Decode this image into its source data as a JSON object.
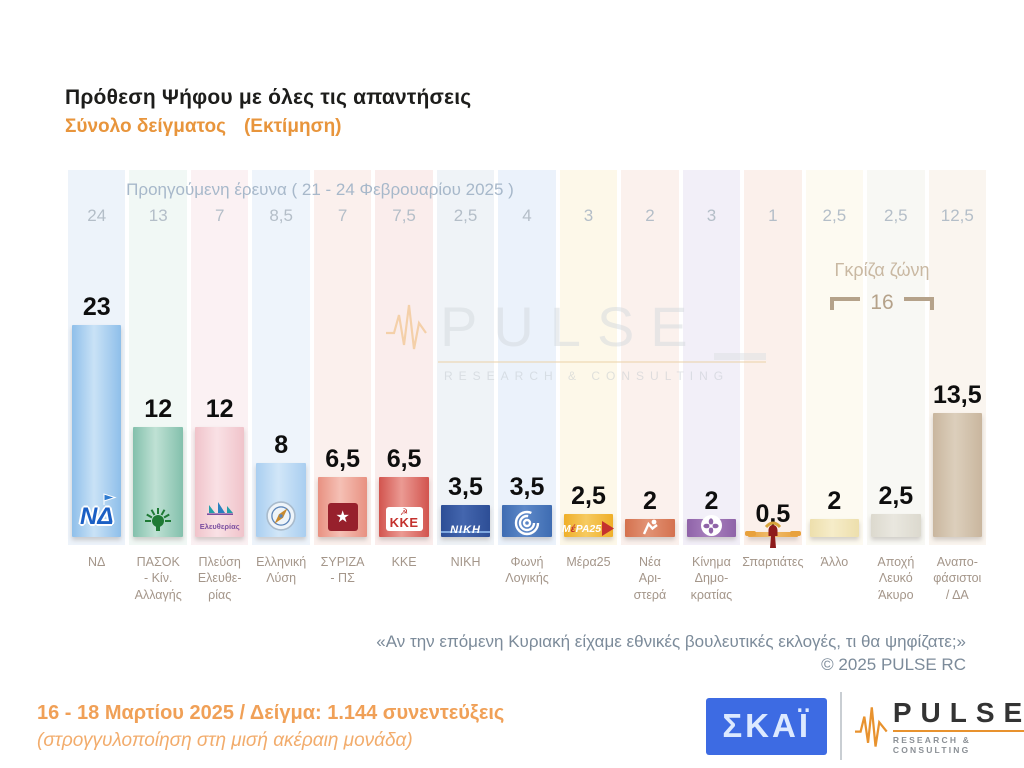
{
  "header": {
    "title": "Πρόθεση Ψήφου με όλες τις απαντήσεις",
    "subtitle": "Σύνολο δείγματος",
    "subtitle_note": "(Εκτίμηση)"
  },
  "chart_data": {
    "type": "bar",
    "title": "Πρόθεση Ψήφου με όλες τις απαντήσεις",
    "subtitle": "Σύνολο δείγματος (Εκτίμηση)",
    "previous_survey_label": "Προηγούμενη έρευνα ( 21 - 24 Φεβρουαρίου 2025 )",
    "gray_zone": {
      "label": "Γκρίζα ζώνη",
      "value": "16"
    },
    "ylim": [
      0,
      26
    ],
    "grid": false,
    "legend": "none",
    "categories": [
      "ΝΔ",
      "ΠΑΣΟΚ - Κίν. Αλλαγής",
      "Πλεύση Ελευθερίας",
      "Ελληνική Λύση",
      "ΣΥΡΙΖΑ - ΠΣ",
      "ΚΚΕ",
      "ΝΙΚΗ",
      "Φωνή Λογικής",
      "Μέρα25",
      "Νέα Αριστερά",
      "Κίνημα Δημοκρατίας",
      "Σπαρτιάτες",
      "Άλλο",
      "Αποχή Λευκό Άκυρο",
      "Αναποφάσιστοι / ΔΑ"
    ],
    "series": [
      {
        "name": "Εκτίμηση 16 - 18 Μαρτίου 2025",
        "values": [
          23,
          12,
          12,
          8,
          6.5,
          6.5,
          3.5,
          3.5,
          2.5,
          2,
          2,
          0.5,
          2,
          2.5,
          13.5
        ]
      },
      {
        "name": "Προηγούμενη έρευνα 21 - 24 Φεβρουαρίου 2025",
        "values": [
          24,
          13,
          7,
          8.5,
          7,
          7.5,
          2.5,
          4,
          3,
          2,
          3,
          1,
          2.5,
          2.5,
          12.5
        ]
      }
    ],
    "parties": [
      {
        "id": "nd",
        "label_lines": [
          "ΝΔ"
        ],
        "value": 23,
        "display": "23",
        "prev": "24",
        "bar": "#8fbfea",
        "bar_light": "#c9e2f6",
        "tint": "#edf3fa",
        "logo": "nd"
      },
      {
        "id": "pasok",
        "label_lines": [
          "ΠΑΣΟΚ",
          "- Κίν.",
          "Αλλαγής"
        ],
        "value": 12,
        "display": "12",
        "prev": "13",
        "bar": "#83c0ac",
        "bar_light": "#bfe1d4",
        "tint": "#f1f8f5",
        "logo": "pasok"
      },
      {
        "id": "plefsi-eleftherias",
        "label_lines": [
          "Πλεύση",
          "Ελευθε-",
          "ρίας"
        ],
        "value": 12,
        "display": "12",
        "prev": "7",
        "bar": "#f0c3ca",
        "bar_light": "#f9e1e5",
        "tint": "#fbf1f3",
        "logo": "plefsi"
      },
      {
        "id": "elliniki-lysi",
        "label_lines": [
          "Ελληνική",
          "Λύση"
        ],
        "value": 8,
        "display": "8",
        "prev": "8,5",
        "bar": "#a9cef0",
        "bar_light": "#d1e6f8",
        "tint": "#eef4fb",
        "logo": "compass"
      },
      {
        "id": "syriza-ps",
        "label_lines": [
          "ΣΥΡΙΖΑ",
          "- ΠΣ"
        ],
        "value": 6.5,
        "display": "6,5",
        "prev": "7",
        "bar": "#e89181",
        "bar_light": "#f5c0b5",
        "tint": "#fbf0ed",
        "logo": "syriza"
      },
      {
        "id": "kke",
        "label_lines": [
          "ΚΚΕ"
        ],
        "value": 6.5,
        "display": "6,5",
        "prev": "7,5",
        "bar": "#d2544e",
        "bar_light": "#eb9a93",
        "tint": "#faedec",
        "logo": "kke"
      },
      {
        "id": "niki",
        "label_lines": [
          "ΝΙΚΗ"
        ],
        "value": 3.5,
        "display": "3,5",
        "prev": "2,5",
        "bar": "#2d4e96",
        "bar_light": "#4466ae",
        "tint": "#eff3f7",
        "logo": "niki"
      },
      {
        "id": "foni-logikis",
        "label_lines": [
          "Φωνή",
          "Λογικής"
        ],
        "value": 3.5,
        "display": "3,5",
        "prev": "4",
        "bar": "#3e6cb2",
        "bar_light": "#5d88c8",
        "tint": "#ebf2fb",
        "logo": "foni"
      },
      {
        "id": "mera25",
        "label_lines": [
          "Μέρα25"
        ],
        "value": 2.5,
        "display": "2,5",
        "prev": "3",
        "bar": "#efaf28",
        "bar_light": "#f6ca60",
        "tint": "#fdf8e9",
        "logo": "mera25"
      },
      {
        "id": "nea-aristera",
        "label_lines": [
          "Νέα",
          "Αρι-",
          "στερά"
        ],
        "value": 2,
        "display": "2",
        "prev": "2",
        "bar": "#d4714e",
        "bar_light": "#e29375",
        "tint": "#fbf1ed",
        "logo": "nea-aristera"
      },
      {
        "id": "kinima-dimokratias",
        "label_lines": [
          "Κίνημα",
          "Δημο-",
          "κρατίας"
        ],
        "value": 2,
        "display": "2",
        "prev": "3",
        "bar": "#8f63a8",
        "bar_light": "#a981bf",
        "tint": "#f2eff8",
        "logo": "kinima"
      },
      {
        "id": "spartiates",
        "label_lines": [
          "Σπαρτιάτες"
        ],
        "value": 0.5,
        "display": "0,5",
        "prev": "1",
        "bar": "#e8a13c",
        "bar_light": "#f0bd6e",
        "tint": "#fbf0eb",
        "logo": "spartiates"
      },
      {
        "id": "allo",
        "label_lines": [
          "Άλλο"
        ],
        "value": 2,
        "display": "2",
        "prev": "2,5",
        "bar": "#eddfac",
        "bar_light": "#f6ecc9",
        "tint": "#fdfaf1",
        "logo": null
      },
      {
        "id": "apochi-lefko-akyro",
        "label_lines": [
          "Αποχή",
          "Λευκό",
          "Άκυρο"
        ],
        "value": 2.5,
        "display": "2,5",
        "prev": "2,5",
        "bar": "#dcd9ce",
        "bar_light": "#e9e7df",
        "tint": "#f8f8f4",
        "logo": null
      },
      {
        "id": "anapofasistoi-da",
        "label_lines": [
          "Αναπο-",
          "φάσιστοι",
          "/ ΔΑ"
        ],
        "value": 13.5,
        "display": "13,5",
        "prev": "12,5",
        "bar": "#c9b69e",
        "bar_light": "#dccfbc",
        "tint": "#faf5ef",
        "logo": null
      }
    ]
  },
  "footer": {
    "question": "«Αν την επόμενη Κυριακή είχαμε εθνικές βουλευτικές εκλογές, τι θα ψηφίζατε;»",
    "copyright": "©  2025  PULSE RC",
    "fieldwork": "16 - 18 Μαρτίου 2025  /  Δείγμα:  1.144 συνεντεύξεις",
    "rounding": "(στρογγυλοποίηση στη μισή ακέραιη μονάδα)",
    "skai_label": "ΣΚΑΪ",
    "pulse_label": "PULSE",
    "pulse_sub": "RESEARCH & CONSULTING"
  },
  "colors": {
    "accent_orange": "#e8953c",
    "prev_text": "#b4bec8",
    "gray_zone": "#b5a28a",
    "axis_label": "#a4968a",
    "skai_blue": "#3d6be3",
    "pulse_orange": "#e8922e"
  }
}
